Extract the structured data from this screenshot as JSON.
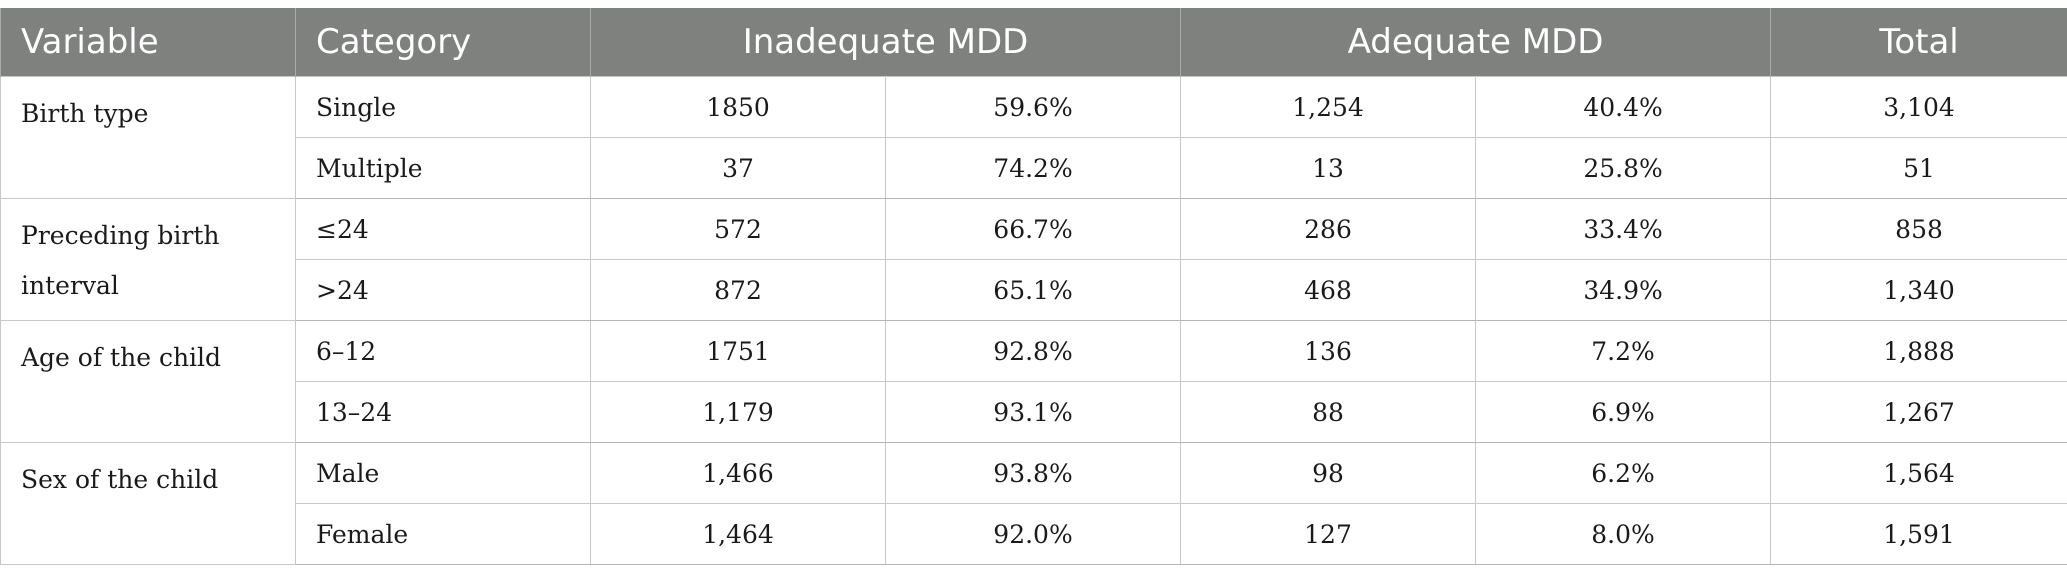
{
  "table": {
    "headers": {
      "variable": "Variable",
      "category": "Category",
      "inadequate": "Inadequate MDD",
      "adequate": "Adequate MDD",
      "total": "Total"
    },
    "groups": [
      {
        "variable": "Birth type",
        "rows": [
          {
            "category": "Single",
            "inadequate_n": "1850",
            "inadequate_pct": "59.6%",
            "adequate_n": "1,254",
            "adequate_pct": "40.4%",
            "total": "3,104"
          },
          {
            "category": "Multiple",
            "inadequate_n": "37",
            "inadequate_pct": "74.2%",
            "adequate_n": "13",
            "adequate_pct": "25.8%",
            "total": "51"
          }
        ]
      },
      {
        "variable": "Preceding birth interval",
        "rows": [
          {
            "category": "≤24",
            "inadequate_n": "572",
            "inadequate_pct": "66.7%",
            "adequate_n": "286",
            "adequate_pct": "33.4%",
            "total": "858"
          },
          {
            "category": ">24",
            "inadequate_n": "872",
            "inadequate_pct": "65.1%",
            "adequate_n": "468",
            "adequate_pct": "34.9%",
            "total": "1,340"
          }
        ]
      },
      {
        "variable": "Age of the child",
        "rows": [
          {
            "category": "6–12",
            "inadequate_n": "1751",
            "inadequate_pct": "92.8%",
            "adequate_n": "136",
            "adequate_pct": "7.2%",
            "total": "1,888"
          },
          {
            "category": "13–24",
            "inadequate_n": "1,179",
            "inadequate_pct": "93.1%",
            "adequate_n": "88",
            "adequate_pct": "6.9%",
            "total": "1,267"
          }
        ]
      },
      {
        "variable": "Sex of the child",
        "rows": [
          {
            "category": "Male",
            "inadequate_n": "1,466",
            "inadequate_pct": "93.8%",
            "adequate_n": "98",
            "adequate_pct": "6.2%",
            "total": "1,564"
          },
          {
            "category": "Female",
            "inadequate_n": "1,464",
            "inadequate_pct": "92.0%",
            "adequate_n": "127",
            "adequate_pct": "8.0%",
            "total": "1,591"
          }
        ]
      }
    ]
  }
}
